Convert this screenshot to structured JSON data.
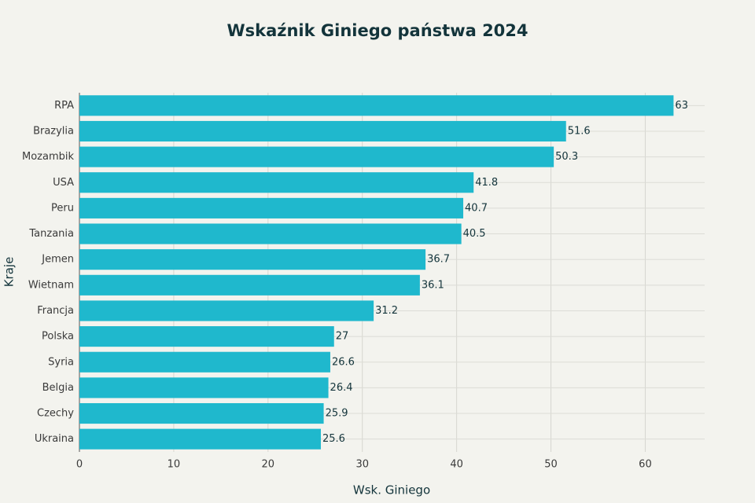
{
  "chart_data": {
    "type": "hbar",
    "title": "Wskaźnik Giniego państwa 2024",
    "x_label": "Wsk. Giniego",
    "y_label": "Kraje",
    "categories": [
      "RPA",
      "Brazylia",
      "Mozambik",
      "USA",
      "Peru",
      "Tanzania",
      "Jemen",
      "Wietnam",
      "Francja",
      "Polska",
      "Syria",
      "Belgia",
      "Czechy",
      "Ukraina"
    ],
    "values": [
      63,
      51.6,
      50.3,
      41.8,
      40.7,
      40.5,
      36.7,
      36.1,
      31.2,
      27,
      26.6,
      26.4,
      25.9,
      25.6
    ],
    "color": "#1fb8cd",
    "xlim": [
      0,
      66.3
    ],
    "xticks": [
      0,
      10,
      20,
      30,
      40,
      50,
      60
    ],
    "grid": true
  }
}
